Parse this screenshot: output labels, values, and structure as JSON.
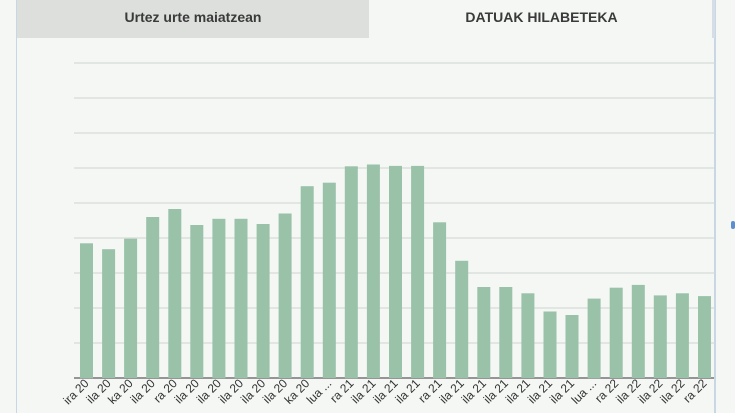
{
  "tabs": {
    "yearly_label": "Urtez urte maiatzean",
    "monthly_label": "DATUAK HILABETEKA"
  },
  "colors": {
    "bar": "#99c2a9",
    "grid": "#cfd6d1",
    "tab_inactive_bg": "#dcdfdc",
    "background": "#f4f7f4"
  },
  "chart_data": {
    "type": "bar",
    "categories": [
      "ira 20",
      "ila 20",
      "ka 20",
      "ila 20",
      "ra 20",
      "ila 20",
      "ila 20",
      "ila 20",
      "ila 20",
      "ila 20",
      "ka 20",
      "lua ...",
      "ra 21",
      "ila 21",
      "ila 21",
      "ila 21",
      "ra 21",
      "ila 21",
      "ila 21",
      "ila 21",
      "ila 21",
      "ila 21",
      "ila 21",
      "lua ...",
      "ra 22",
      "ila 22",
      "ila 22",
      "ila 22",
      "ra 22"
    ],
    "values": [
      38.5,
      36.8,
      39.8,
      46.0,
      48.3,
      43.7,
      45.5,
      45.5,
      44.0,
      47.0,
      54.8,
      55.8,
      60.5,
      61.0,
      60.6,
      60.6,
      44.5,
      33.5,
      26.0,
      26.0,
      24.2,
      19.0,
      18.0,
      22.7,
      25.8,
      26.6,
      23.6,
      24.2,
      23.4
    ],
    "ylim": [
      0,
      145
    ],
    "grid": true,
    "legend": "none"
  }
}
